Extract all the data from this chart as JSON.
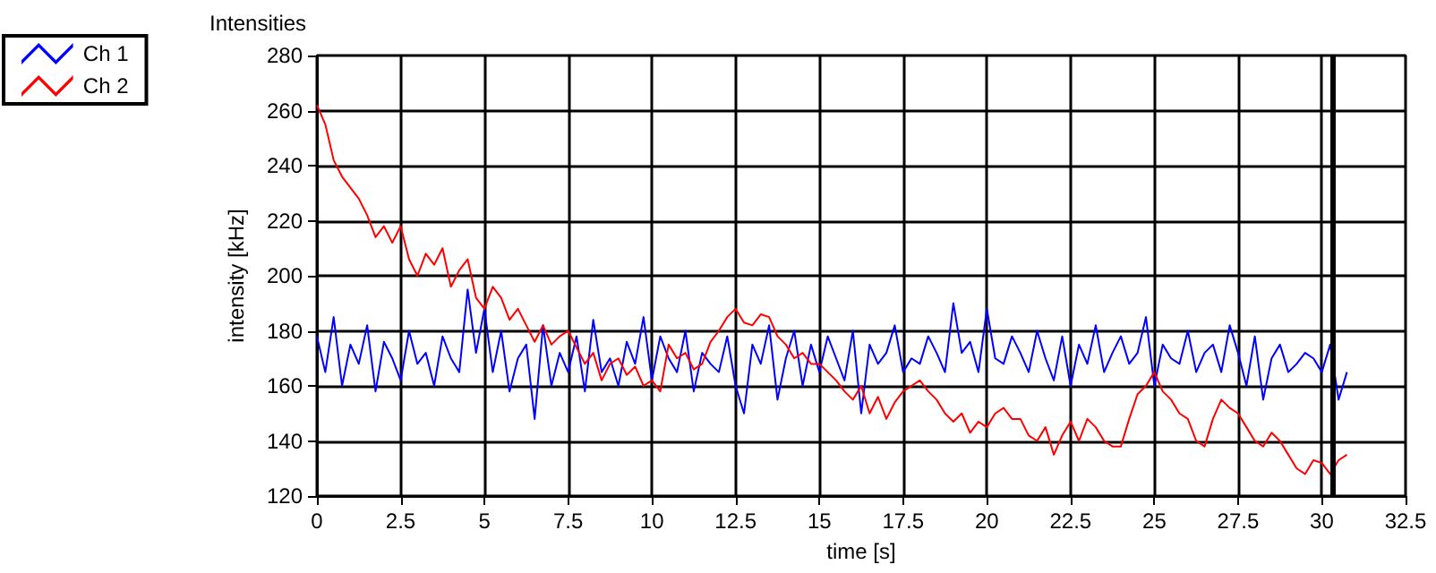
{
  "chart_data": {
    "type": "line",
    "title": "Intensities",
    "xlabel": "time [s]",
    "ylabel": "intensity [kHz]",
    "x": [
      0,
      0.25,
      0.5,
      0.75,
      1,
      1.25,
      1.5,
      1.75,
      2,
      2.25,
      2.5,
      2.75,
      3,
      3.25,
      3.5,
      3.75,
      4,
      4.25,
      4.5,
      4.75,
      5,
      5.25,
      5.5,
      5.75,
      6,
      6.25,
      6.5,
      6.75,
      7,
      7.25,
      7.5,
      7.75,
      8,
      8.25,
      8.5,
      8.75,
      9,
      9.25,
      9.5,
      9.75,
      10,
      10.25,
      10.5,
      10.75,
      11,
      11.25,
      11.5,
      11.75,
      12,
      12.25,
      12.5,
      12.75,
      13,
      13.25,
      13.5,
      13.75,
      14,
      14.25,
      14.5,
      14.75,
      15,
      15.25,
      15.5,
      15.75,
      16,
      16.25,
      16.5,
      16.75,
      17,
      17.25,
      17.5,
      17.75,
      18,
      18.25,
      18.5,
      18.75,
      19,
      19.25,
      19.5,
      19.75,
      20,
      20.25,
      20.5,
      20.75,
      21,
      21.25,
      21.5,
      21.75,
      22,
      22.25,
      22.5,
      22.75,
      23,
      23.25,
      23.5,
      23.75,
      24,
      24.25,
      24.5,
      24.75,
      25,
      25.25,
      25.5,
      25.75,
      26,
      26.25,
      26.5,
      26.75,
      27,
      27.25,
      27.5,
      27.75,
      28,
      28.25,
      28.5,
      28.75,
      29,
      29.25,
      29.5,
      29.75,
      30,
      30.25,
      30.5,
      30.75
    ],
    "series": [
      {
        "name": "Ch 1",
        "color": "#0000ff",
        "values": [
          178,
          165,
          185,
          160,
          175,
          168,
          182,
          158,
          176,
          170,
          162,
          180,
          168,
          172,
          160,
          178,
          170,
          165,
          195,
          172,
          188,
          165,
          180,
          158,
          170,
          175,
          148,
          182,
          160,
          172,
          165,
          178,
          158,
          184,
          165,
          170,
          160,
          176,
          168,
          185,
          162,
          178,
          170,
          165,
          180,
          158,
          172,
          168,
          165,
          178,
          160,
          150,
          175,
          168,
          182,
          155,
          170,
          180,
          160,
          175,
          165,
          178,
          170,
          162,
          180,
          150,
          175,
          168,
          172,
          182,
          165,
          170,
          168,
          178,
          172,
          165,
          190,
          172,
          176,
          165,
          188,
          170,
          168,
          178,
          172,
          165,
          180,
          170,
          162,
          178,
          160,
          175,
          168,
          182,
          165,
          172,
          178,
          168,
          172,
          185,
          160,
          175,
          170,
          168,
          180,
          165,
          172,
          175,
          165,
          182,
          172,
          160,
          178,
          155,
          170,
          175,
          165,
          168,
          172,
          170,
          165,
          175,
          155,
          165
        ]
      },
      {
        "name": "Ch 2",
        "color": "#ff0000",
        "values": [
          262,
          255,
          242,
          236,
          232,
          228,
          222,
          214,
          218,
          212,
          218,
          206,
          200,
          208,
          204,
          210,
          196,
          202,
          206,
          192,
          188,
          196,
          192,
          184,
          188,
          182,
          176,
          182,
          175,
          178,
          180,
          174,
          168,
          172,
          162,
          168,
          170,
          164,
          167,
          160,
          162,
          158,
          175,
          170,
          172,
          166,
          168,
          176,
          180,
          185,
          188,
          183,
          182,
          186,
          185,
          178,
          175,
          170,
          172,
          168,
          168,
          165,
          162,
          158,
          155,
          160,
          150,
          156,
          148,
          154,
          158,
          160,
          162,
          158,
          155,
          150,
          147,
          150,
          143,
          147,
          145,
          150,
          152,
          148,
          148,
          142,
          140,
          145,
          135,
          142,
          147,
          140,
          148,
          145,
          140,
          138,
          138,
          148,
          157,
          160,
          165,
          158,
          155,
          150,
          148,
          140,
          138,
          148,
          155,
          152,
          150,
          145,
          140,
          138,
          143,
          140,
          135,
          130,
          128,
          133,
          132,
          128,
          133,
          135
        ]
      }
    ],
    "xlim": [
      0,
      32.5
    ],
    "xticks": [
      0,
      2.5,
      5,
      7.5,
      10,
      12.5,
      15,
      17.5,
      20,
      22.5,
      25,
      27.5,
      30,
      32.5
    ],
    "ylim": [
      120,
      280
    ],
    "yticks": [
      120,
      140,
      160,
      180,
      200,
      220,
      240,
      260,
      280
    ],
    "ref_lines": [
      {
        "axis": "x",
        "value": 30.3,
        "color": "#000000"
      }
    ],
    "grid": true,
    "legend": "top left",
    "marker": "none",
    "line_style": "solid"
  }
}
